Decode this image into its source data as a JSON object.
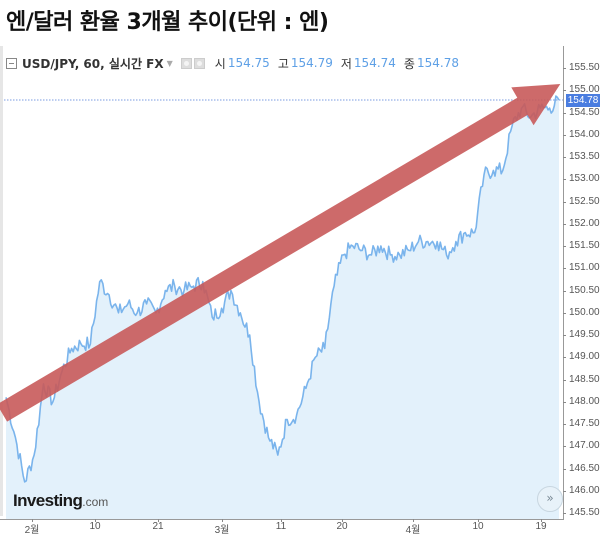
{
  "page": {
    "title": "엔/달러 환율 3개월 추이(단위 : 엔)"
  },
  "toolbar": {
    "symbol": "USD/JPY, 60, 실시간 FX",
    "open_label": "시",
    "open_value": "154.75",
    "high_label": "고",
    "high_value": "154.79",
    "low_label": "저",
    "low_value": "154.74",
    "close_label": "종",
    "close_value": "154.78"
  },
  "price_tag": "154.78",
  "logo": {
    "name": "Investing",
    "suffix": ".com"
  },
  "scroll_button": "»",
  "colors": {
    "line": "#7ab4ec",
    "area_fill": "#e3f1fb",
    "trend_arrow": "#c85a5a",
    "price_tag": "#4a7de0",
    "ohlc_value": "#5ea0e6"
  },
  "chart_data": {
    "type": "area",
    "title": "엔/달러 환율 3개월 추이(단위 : 엔)",
    "series_name": "USD/JPY, 60, 실시간 FX",
    "xlabel": "",
    "ylabel": "",
    "ylim": [
      145.5,
      155.5
    ],
    "y_ticks": [
      "155.50",
      "155.00",
      "154.50",
      "154.00",
      "153.50",
      "153.00",
      "152.50",
      "152.00",
      "151.50",
      "151.00",
      "150.50",
      "150.00",
      "149.50",
      "149.00",
      "148.50",
      "148.00",
      "147.50",
      "147.00",
      "146.50",
      "146.00",
      "145.50"
    ],
    "x_ticks": [
      "2월",
      "10",
      "21",
      "3월",
      "11",
      "20",
      "4월",
      "10",
      "19"
    ],
    "last_price": 154.78,
    "grid": false,
    "legend": "none",
    "annotation": "Red upward trend arrow from lower-left (~147.9) to upper-right (~155.3)",
    "points": [
      {
        "x": "Jan 29",
        "y": 148.1
      },
      {
        "x": "Jan 31",
        "y": 147.2
      },
      {
        "x": "Feb 1",
        "y": 146.2
      },
      {
        "x": "Feb 2",
        "y": 146.8
      },
      {
        "x": "Feb 5",
        "y": 148.4
      },
      {
        "x": "Feb 6",
        "y": 148.0
      },
      {
        "x": "Feb 7",
        "y": 148.7
      },
      {
        "x": "Feb 8",
        "y": 149.2
      },
      {
        "x": "Feb 9",
        "y": 149.3
      },
      {
        "x": "Feb 12",
        "y": 149.3
      },
      {
        "x": "Feb 13",
        "y": 150.7
      },
      {
        "x": "Feb 14",
        "y": 150.4
      },
      {
        "x": "Feb 15",
        "y": 150.0
      },
      {
        "x": "Feb 16",
        "y": 150.2
      },
      {
        "x": "Feb 19",
        "y": 150.0
      },
      {
        "x": "Feb 20",
        "y": 150.2
      },
      {
        "x": "Feb 21",
        "y": 150.0
      },
      {
        "x": "Feb 22",
        "y": 150.5
      },
      {
        "x": "Feb 23",
        "y": 150.6
      },
      {
        "x": "Feb 26",
        "y": 150.5
      },
      {
        "x": "Feb 27",
        "y": 150.6
      },
      {
        "x": "Feb 28",
        "y": 150.7
      },
      {
        "x": "Feb 29",
        "y": 149.9
      },
      {
        "x": "Mar 1",
        "y": 150.1
      },
      {
        "x": "Mar 4",
        "y": 150.5
      },
      {
        "x": "Mar 5",
        "y": 150.0
      },
      {
        "x": "Mar 6",
        "y": 149.5
      },
      {
        "x": "Mar 7",
        "y": 148.0
      },
      {
        "x": "Mar 8",
        "y": 147.2
      },
      {
        "x": "Mar 11",
        "y": 146.8
      },
      {
        "x": "Mar 12",
        "y": 147.6
      },
      {
        "x": "Mar 13",
        "y": 147.7
      },
      {
        "x": "Mar 14",
        "y": 148.3
      },
      {
        "x": "Mar 15",
        "y": 149.0
      },
      {
        "x": "Mar 18",
        "y": 149.2
      },
      {
        "x": "Mar 19",
        "y": 150.6
      },
      {
        "x": "Mar 20",
        "y": 151.3
      },
      {
        "x": "Mar 21",
        "y": 151.5
      },
      {
        "x": "Mar 22",
        "y": 151.4
      },
      {
        "x": "Mar 25",
        "y": 151.3
      },
      {
        "x": "Mar 26",
        "y": 151.5
      },
      {
        "x": "Mar 27",
        "y": 151.3
      },
      {
        "x": "Mar 28",
        "y": 151.3
      },
      {
        "x": "Mar 29",
        "y": 151.4
      },
      {
        "x": "Apr 1",
        "y": 151.6
      },
      {
        "x": "Apr 2",
        "y": 151.6
      },
      {
        "x": "Apr 3",
        "y": 151.6
      },
      {
        "x": "Apr 4",
        "y": 151.3
      },
      {
        "x": "Apr 5",
        "y": 151.6
      },
      {
        "x": "Apr 8",
        "y": 151.8
      },
      {
        "x": "Apr 9",
        "y": 151.8
      },
      {
        "x": "Apr 10",
        "y": 153.1
      },
      {
        "x": "Apr 11",
        "y": 153.2
      },
      {
        "x": "Apr 12",
        "y": 153.2
      },
      {
        "x": "Apr 15",
        "y": 154.2
      },
      {
        "x": "Apr 16",
        "y": 154.6
      },
      {
        "x": "Apr 17",
        "y": 154.4
      },
      {
        "x": "Apr 18",
        "y": 154.6
      },
      {
        "x": "Apr 19",
        "y": 154.6
      },
      {
        "x": "Apr 22",
        "y": 154.78
      }
    ]
  }
}
